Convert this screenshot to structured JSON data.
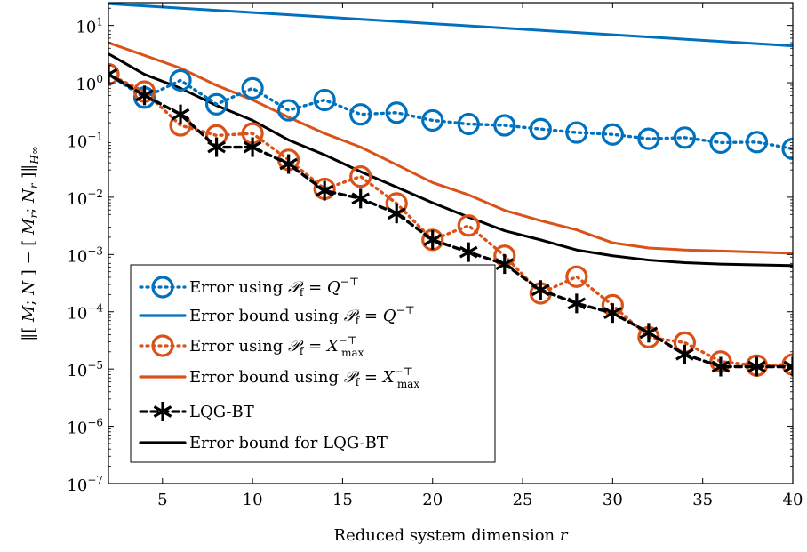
{
  "chart_data": {
    "type": "line",
    "xlabel": "Reduced system dimension r",
    "ylabel": "‖[M; N] − [M_r; N_r]‖_H∞",
    "xlim": [
      2,
      40
    ],
    "ylim": [
      1e-07,
      25
    ],
    "yscale": "log",
    "grid": false,
    "legend_position": "bottom-left",
    "x_ticks": [
      5,
      10,
      15,
      20,
      25,
      30,
      35,
      40
    ],
    "y_ticks": [
      {
        "value": 10,
        "mantissa": "10",
        "exp": "1"
      },
      {
        "value": 1,
        "mantissa": "10",
        "exp": "0"
      },
      {
        "value": 0.1,
        "mantissa": "10",
        "exp": "−1"
      },
      {
        "value": 0.01,
        "mantissa": "10",
        "exp": "−2"
      },
      {
        "value": 0.001,
        "mantissa": "10",
        "exp": "−3"
      },
      {
        "value": 0.0001,
        "mantissa": "10",
        "exp": "−4"
      },
      {
        "value": 1e-05,
        "mantissa": "10",
        "exp": "−5"
      },
      {
        "value": 1e-06,
        "mantissa": "10",
        "exp": "−6"
      },
      {
        "value": 1e-07,
        "mantissa": "10",
        "exp": "−7"
      }
    ],
    "series": [
      {
        "name": "Error using P_f = Q^−T",
        "color": "#0072bd",
        "style": "dotted",
        "marker": "circle",
        "x": [
          2,
          4,
          6,
          8,
          10,
          12,
          14,
          16,
          18,
          20,
          22,
          24,
          26,
          28,
          30,
          32,
          34,
          36,
          38,
          40
        ],
        "y": [
          1.4,
          0.55,
          1.1,
          0.42,
          0.8,
          0.33,
          0.5,
          0.28,
          0.3,
          0.22,
          0.19,
          0.18,
          0.155,
          0.135,
          0.125,
          0.105,
          0.11,
          0.09,
          0.092,
          0.07
        ]
      },
      {
        "name": "Error bound using P_f = Q^−T",
        "color": "#0072bd",
        "style": "solid",
        "marker": "none",
        "x": [
          2,
          40
        ],
        "y": [
          24,
          4.4
        ]
      },
      {
        "name": "Error using P_f = X_max^−T",
        "color": "#d95319",
        "style": "dotted",
        "marker": "circle",
        "x": [
          2,
          4,
          6,
          8,
          10,
          12,
          14,
          16,
          18,
          20,
          22,
          24,
          26,
          28,
          30,
          32,
          34,
          36,
          38,
          40
        ],
        "y": [
          1.4,
          0.7,
          0.18,
          0.12,
          0.13,
          0.045,
          0.014,
          0.023,
          0.0078,
          0.0018,
          0.0032,
          0.00095,
          0.00021,
          0.00041,
          0.00013,
          3.6e-05,
          2.9e-05,
          1.35e-05,
          1.15e-05,
          1.2e-05
        ]
      },
      {
        "name": "Error bound using P_f = X_max^−T",
        "color": "#d95319",
        "style": "solid",
        "marker": "none",
        "x": [
          2,
          4,
          6,
          8,
          10,
          12,
          14,
          16,
          18,
          20,
          22,
          24,
          26,
          28,
          30,
          32,
          34,
          36,
          38,
          40
        ],
        "y": [
          5,
          3,
          1.8,
          0.9,
          0.5,
          0.25,
          0.13,
          0.075,
          0.037,
          0.018,
          0.011,
          0.0059,
          0.0039,
          0.0027,
          0.0016,
          0.0013,
          0.0012,
          0.00115,
          0.0011,
          0.00105
        ]
      },
      {
        "name": "LQG-BT",
        "color": "#000000",
        "style": "dashed",
        "marker": "asterisk",
        "x": [
          2,
          4,
          6,
          8,
          10,
          12,
          14,
          16,
          18,
          20,
          22,
          24,
          26,
          28,
          30,
          32,
          34,
          36,
          38,
          40
        ],
        "y": [
          1.4,
          0.6,
          0.28,
          0.075,
          0.075,
          0.038,
          0.013,
          0.0095,
          0.0052,
          0.0018,
          0.0011,
          0.00068,
          0.00024,
          0.00014,
          9.5e-05,
          4.3e-05,
          1.8e-05,
          1.1e-05,
          1.1e-05,
          1.1e-05
        ]
      },
      {
        "name": "Error bound for LQG-BT",
        "color": "#000000",
        "style": "solid",
        "marker": "none",
        "x": [
          2,
          4,
          6,
          8,
          10,
          12,
          14,
          16,
          18,
          20,
          22,
          24,
          26,
          28,
          30,
          32,
          34,
          36,
          38,
          40
        ],
        "y": [
          3.2,
          1.4,
          0.8,
          0.4,
          0.22,
          0.1,
          0.055,
          0.028,
          0.015,
          0.008,
          0.0045,
          0.0026,
          0.0018,
          0.0012,
          0.00095,
          0.0008,
          0.00072,
          0.00068,
          0.00066,
          0.00064
        ]
      }
    ]
  }
}
